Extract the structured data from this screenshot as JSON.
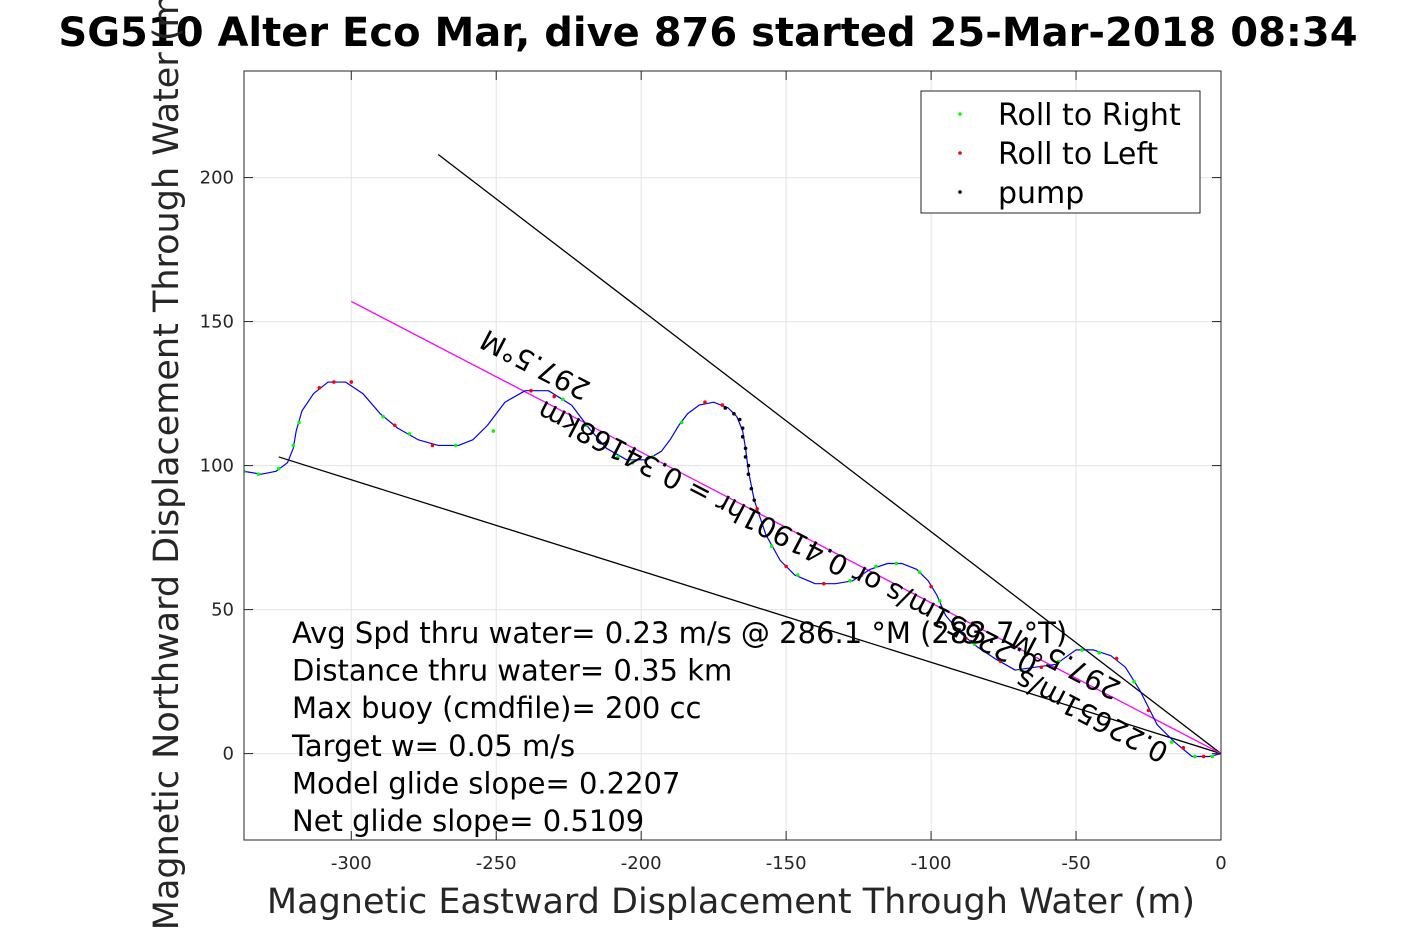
{
  "chart_data": {
    "type": "line",
    "title": "SG510 Alter Eco Mar, dive 876 started 25-Mar-2018 08:34",
    "xlabel": "Magnetic Eastward Displacement Through Water (m)",
    "ylabel": "Magnetic Northward Displacement Through Water (m)",
    "xlim": [
      -337,
      0
    ],
    "ylim": [
      -30,
      237
    ],
    "xticks": [
      -300,
      -250,
      -200,
      -150,
      -100,
      -50,
      0
    ],
    "yticks": [
      0,
      50,
      100,
      150,
      200
    ],
    "grid": true,
    "legend_position": "top-right",
    "legend": [
      {
        "label": "Roll to Right",
        "color": "#00ff00"
      },
      {
        "label": "Roll to Left",
        "color": "#ff0000"
      },
      {
        "label": "pump",
        "color": "#000000"
      }
    ],
    "track": {
      "name": "glider track",
      "color": "#0000ff",
      "points": [
        [
          0,
          0
        ],
        [
          -4,
          -1
        ],
        [
          -10,
          -1
        ],
        [
          -16,
          4
        ],
        [
          -22,
          10
        ],
        [
          -28,
          22
        ],
        [
          -33,
          30
        ],
        [
          -38,
          34
        ],
        [
          -44,
          36
        ],
        [
          -50,
          36
        ],
        [
          -57,
          31
        ],
        [
          -64,
          30
        ],
        [
          -71,
          29
        ],
        [
          -78,
          33
        ],
        [
          -84,
          37
        ],
        [
          -90,
          42
        ],
        [
          -95,
          48
        ],
        [
          -98,
          55
        ],
        [
          -101,
          60
        ],
        [
          -105,
          64
        ],
        [
          -110,
          66
        ],
        [
          -115,
          66
        ],
        [
          -121,
          64
        ],
        [
          -127,
          60
        ],
        [
          -133,
          59
        ],
        [
          -140,
          59
        ],
        [
          -147,
          62
        ],
        [
          -152,
          67
        ],
        [
          -157,
          76
        ],
        [
          -161,
          88
        ],
        [
          -163,
          98
        ],
        [
          -164,
          106
        ],
        [
          -165,
          112
        ],
        [
          -167,
          117
        ],
        [
          -170,
          120
        ],
        [
          -175,
          122
        ],
        [
          -180,
          121
        ],
        [
          -184,
          118
        ],
        [
          -187,
          114
        ],
        [
          -190,
          109
        ],
        [
          -193,
          105
        ],
        [
          -198,
          102
        ],
        [
          -205,
          102
        ],
        [
          -212,
          106
        ],
        [
          -218,
          113
        ],
        [
          -224,
          121
        ],
        [
          -232,
          126
        ],
        [
          -240,
          126
        ],
        [
          -247,
          122
        ],
        [
          -253,
          114
        ],
        [
          -258,
          109
        ],
        [
          -263,
          107
        ],
        [
          -270,
          107
        ],
        [
          -277,
          109
        ],
        [
          -284,
          113
        ],
        [
          -290,
          118
        ],
        [
          -296,
          125
        ],
        [
          -302,
          129
        ],
        [
          -308,
          129
        ],
        [
          -313,
          125
        ],
        [
          -317,
          119
        ],
        [
          -319,
          112
        ],
        [
          -320,
          106
        ],
        [
          -322,
          101
        ],
        [
          -326,
          98
        ],
        [
          -331,
          97
        ],
        [
          -337,
          98
        ]
      ]
    },
    "roll_right_points": [
      [
        -3,
        -1
      ],
      [
        -9,
        -1
      ],
      [
        -17,
        4
      ],
      [
        -30,
        25
      ],
      [
        -42,
        35
      ],
      [
        -48,
        36
      ],
      [
        -56,
        32
      ],
      [
        -69,
        29
      ],
      [
        -85,
        38
      ],
      [
        -97,
        53
      ],
      [
        -104,
        63
      ],
      [
        -112,
        66
      ],
      [
        -119,
        65
      ],
      [
        -128,
        60
      ],
      [
        -146,
        62
      ],
      [
        -155,
        72
      ],
      [
        -186,
        115
      ],
      [
        -196,
        103
      ],
      [
        -203,
        101
      ],
      [
        -208,
        103
      ],
      [
        -219,
        114
      ],
      [
        -227,
        123
      ],
      [
        -251,
        112
      ],
      [
        -264,
        107
      ],
      [
        -280,
        111
      ],
      [
        -289,
        117
      ],
      [
        -318,
        115
      ],
      [
        -320,
        107
      ],
      [
        -325,
        99
      ],
      [
        -332,
        97
      ],
      [
        -337,
        98
      ]
    ],
    "roll_left_points": [
      [
        -6,
        -1
      ],
      [
        -13,
        2
      ],
      [
        -25,
        15
      ],
      [
        -36,
        33
      ],
      [
        -62,
        30
      ],
      [
        -76,
        32
      ],
      [
        -88,
        40
      ],
      [
        -100,
        58
      ],
      [
        -124,
        62
      ],
      [
        -137,
        59
      ],
      [
        -150,
        65
      ],
      [
        -160,
        85
      ],
      [
        -172,
        121
      ],
      [
        -178,
        122
      ],
      [
        -230,
        124
      ],
      [
        -238,
        126
      ],
      [
        -272,
        107
      ],
      [
        -285,
        114
      ],
      [
        -300,
        129
      ],
      [
        -306,
        129
      ],
      [
        -311,
        127
      ]
    ],
    "pump_points": [
      [
        -161,
        88
      ],
      [
        -162,
        92
      ],
      [
        -163,
        97
      ],
      [
        -163,
        100
      ],
      [
        -164,
        103
      ],
      [
        -164,
        106
      ],
      [
        -165,
        110
      ],
      [
        -165,
        113
      ],
      [
        -166,
        116
      ],
      [
        -168,
        118
      ],
      [
        -171,
        120
      ]
    ],
    "heading_line": {
      "color": "#ff00ff",
      "start": [
        -300,
        157
      ],
      "end": [
        0,
        0
      ]
    },
    "envelope_lines": [
      {
        "color": "#000000",
        "start": [
          -270,
          208
        ],
        "end": [
          0,
          0
        ]
      },
      {
        "color": "#000000",
        "start": [
          -325,
          103
        ],
        "end": [
          0,
          0
        ]
      }
    ],
    "annotations": [
      {
        "text": "297.5°M",
        "rotation": 207.5,
        "x": -235,
        "y": 138
      },
      {
        "text": "0.22651m/s or 0.41901hr = 0.34168km",
        "rotation": 207.5,
        "x": -148,
        "y": 78
      },
      {
        "text": "297.5°M",
        "rotation": 207.5,
        "x": -52,
        "y": 34
      },
      {
        "text": "0.22651m/s",
        "rotation": 207.5,
        "x": -43,
        "y": 16
      }
    ]
  },
  "stats": [
    "Avg Spd thru water=  0.23 m/s @ 286.1 °M (283.7 °T)",
    "Distance thru water=  0.35 km",
    "Max buoy (cmdfile)= 200 cc",
    "Target w= 0.05 m/s",
    "Model glide slope= 0.2207",
    "Net glide slope= 0.5109"
  ]
}
